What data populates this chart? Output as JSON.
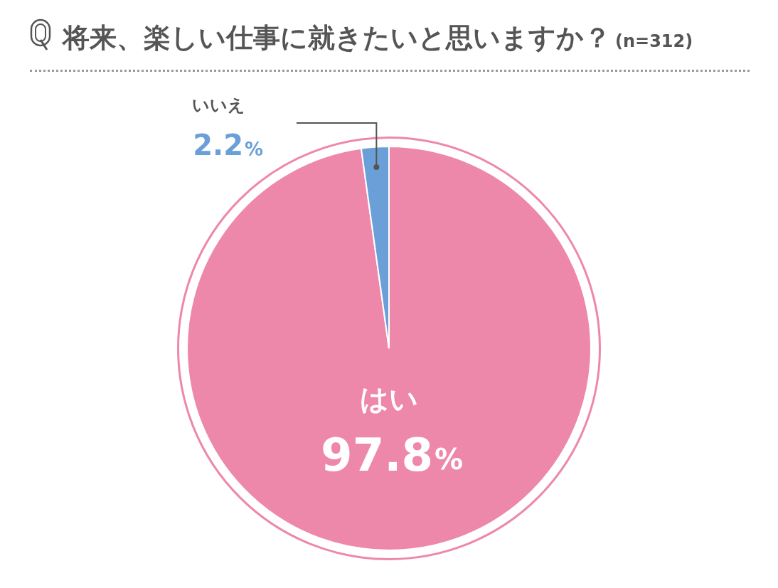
{
  "chart_data": {
    "type": "pie",
    "title": "将来、楽しい仕事に就きたいと思いますか？",
    "subtitle": "(n=312)",
    "categories": [
      "はい",
      "いいえ"
    ],
    "values": [
      97.8,
      2.2
    ],
    "colors": [
      "#ee88aa",
      "#6b9fd8"
    ],
    "value_labels": [
      "97.8%",
      "2.2%"
    ],
    "legend": false
  }
}
